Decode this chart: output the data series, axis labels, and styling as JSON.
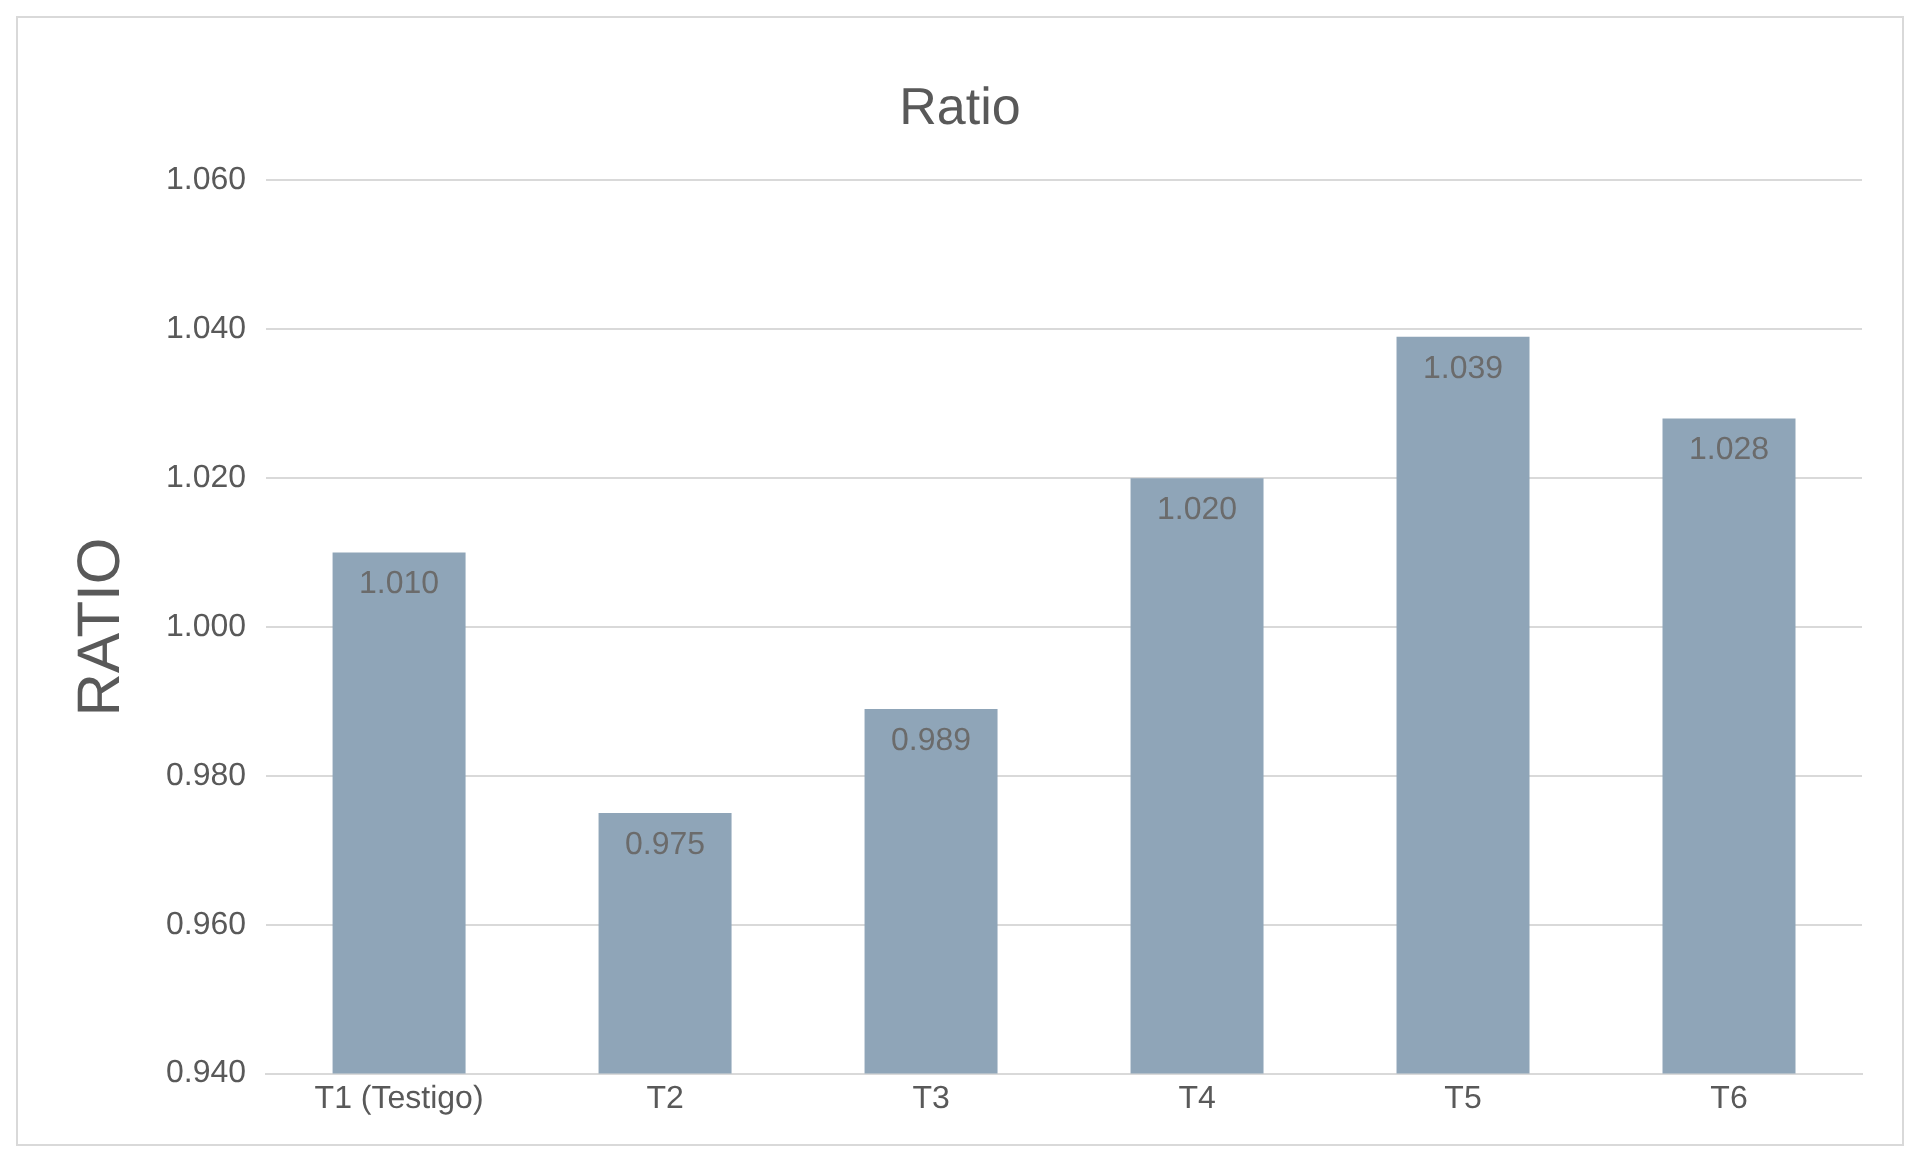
{
  "chart_data": {
    "type": "bar",
    "title": "Ratio",
    "ylabel": "RATIO",
    "categories": [
      "T1 (Testigo)",
      "T2",
      "T3",
      "T4",
      "T5",
      "T6"
    ],
    "values": [
      1.01,
      0.975,
      0.989,
      1.02,
      1.039,
      1.028
    ],
    "value_labels": [
      "1.010",
      "0.975",
      "0.989",
      "1.020",
      "1.039",
      "1.028"
    ],
    "color": "#8fa5b8",
    "ylim": [
      0.94,
      1.06
    ],
    "yticks": [
      {
        "value": 0.94,
        "label": "0.940"
      },
      {
        "value": 0.96,
        "label": "0.960"
      },
      {
        "value": 0.98,
        "label": "0.980"
      },
      {
        "value": 1.0,
        "label": "1.000"
      },
      {
        "value": 1.02,
        "label": "1.020"
      },
      {
        "value": 1.04,
        "label": "1.040"
      },
      {
        "value": 1.06,
        "label": "1.060"
      }
    ],
    "grid": "y",
    "legend": false
  }
}
